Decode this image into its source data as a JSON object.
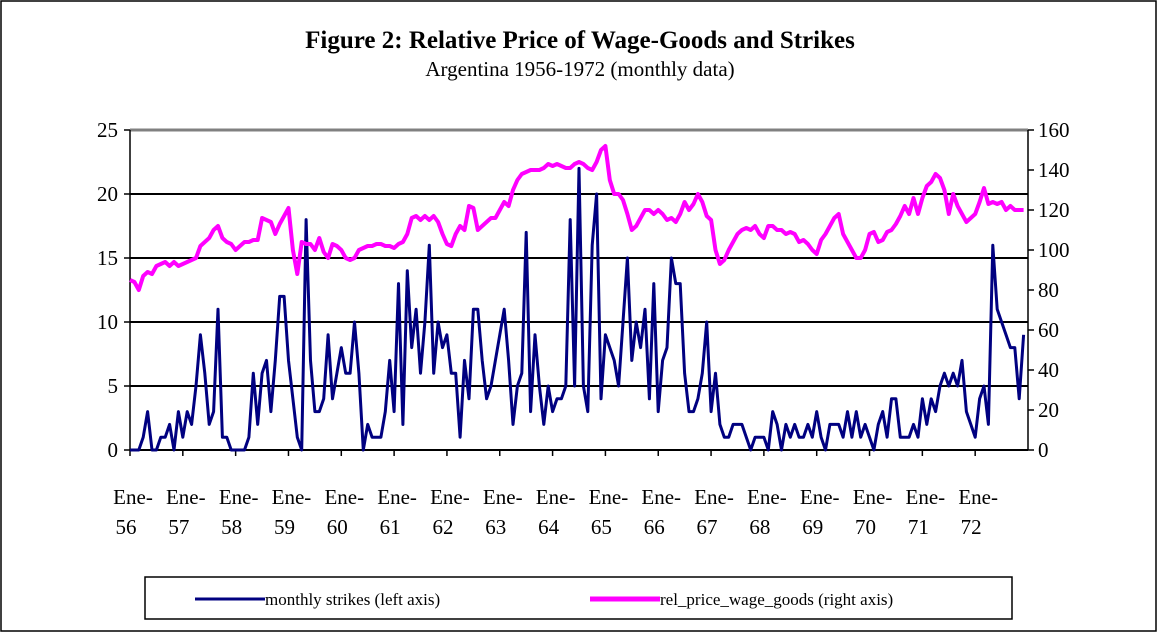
{
  "chart_data": {
    "type": "line",
    "title": "Figure 2: Relative Price of Wage-Goods and Strikes",
    "subtitle": "Argentina 1956-1972 (monthly data)",
    "categories": [
      "Ene-56",
      null,
      null,
      null,
      null,
      null,
      null,
      null,
      null,
      null,
      null,
      null,
      "Ene-57",
      null,
      null,
      null,
      null,
      null,
      null,
      null,
      null,
      null,
      null,
      null,
      "Ene-58",
      null,
      null,
      null,
      null,
      null,
      null,
      null,
      null,
      null,
      null,
      null,
      "Ene-59",
      null,
      null,
      null,
      null,
      null,
      null,
      null,
      null,
      null,
      null,
      null,
      "Ene-60",
      null,
      null,
      null,
      null,
      null,
      null,
      null,
      null,
      null,
      null,
      null,
      "Ene-61",
      null,
      null,
      null,
      null,
      null,
      null,
      null,
      null,
      null,
      null,
      null,
      "Ene-62",
      null,
      null,
      null,
      null,
      null,
      null,
      null,
      null,
      null,
      null,
      null,
      "Ene-63",
      null,
      null,
      null,
      null,
      null,
      null,
      null,
      null,
      null,
      null,
      null,
      "Ene-64",
      null,
      null,
      null,
      null,
      null,
      null,
      null,
      null,
      null,
      null,
      null,
      "Ene-65",
      null,
      null,
      null,
      null,
      null,
      null,
      null,
      null,
      null,
      null,
      null,
      "Ene-66",
      null,
      null,
      null,
      null,
      null,
      null,
      null,
      null,
      null,
      null,
      null,
      "Ene-67",
      null,
      null,
      null,
      null,
      null,
      null,
      null,
      null,
      null,
      null,
      null,
      "Ene-68",
      null,
      null,
      null,
      null,
      null,
      null,
      null,
      null,
      null,
      null,
      null,
      "Ene-69",
      null,
      null,
      null,
      null,
      null,
      null,
      null,
      null,
      null,
      null,
      null,
      "Ene-70",
      null,
      null,
      null,
      null,
      null,
      null,
      null,
      null,
      null,
      null,
      null,
      "Ene-71",
      null,
      null,
      null,
      null,
      null,
      null,
      null,
      null,
      null,
      null,
      null,
      "Ene-72",
      null,
      null,
      null,
      null,
      null,
      null,
      null,
      null,
      null,
      null,
      null
    ],
    "series": [
      {
        "name": "monthly strikes (left axis)",
        "color": "#000080",
        "values": [
          0,
          0,
          0,
          1,
          3,
          0,
          0,
          1,
          1,
          2,
          0,
          3,
          1,
          3,
          2,
          5,
          9,
          6,
          2,
          3,
          11,
          1,
          1,
          0,
          0,
          0,
          0,
          1,
          6,
          2,
          6,
          7,
          3,
          7,
          12,
          12,
          7,
          4,
          1,
          0,
          18,
          7,
          3,
          3,
          4,
          9,
          4,
          6,
          8,
          6,
          6,
          10,
          6,
          0,
          2,
          1,
          1,
          1,
          3,
          7,
          3,
          13,
          2,
          14,
          8,
          11,
          6,
          10,
          16,
          6,
          10,
          8,
          9,
          6,
          6,
          1,
          7,
          4,
          11,
          11,
          7,
          4,
          5,
          7,
          9,
          11,
          7,
          2,
          5,
          6,
          17,
          3,
          9,
          5,
          2,
          5,
          3,
          4,
          4,
          5,
          18,
          5,
          22,
          5,
          3,
          16,
          20,
          4,
          9,
          8,
          7,
          5,
          10,
          15,
          7,
          10,
          8,
          11,
          4,
          13,
          3,
          7,
          8,
          15,
          13,
          13,
          6,
          3,
          3,
          4,
          6,
          10,
          3,
          6,
          2,
          1,
          1,
          2,
          2,
          2,
          1,
          0,
          1,
          1,
          1,
          0,
          3,
          2,
          0,
          2,
          1,
          2,
          1,
          1,
          2,
          1,
          3,
          1,
          0,
          2,
          2,
          2,
          1,
          3,
          1,
          3,
          1,
          2,
          1,
          0,
          2,
          3,
          1,
          4,
          4,
          1,
          1,
          1,
          2,
          1,
          4,
          2,
          4,
          3,
          5,
          6,
          5,
          6,
          5,
          7,
          3,
          2,
          1,
          4,
          5,
          2,
          16,
          11,
          10,
          9,
          8,
          8,
          4,
          9
        ]
      },
      {
        "name": "rel_price_wage_goods (right axis)",
        "color": "#ff00ff",
        "axis": "y2",
        "values": [
          85,
          84,
          80,
          87,
          89,
          88,
          92,
          93,
          94,
          92,
          94,
          92,
          93,
          94,
          95,
          96,
          102,
          104,
          106,
          110,
          112,
          106,
          104,
          103,
          100,
          102,
          104,
          104,
          105,
          105,
          116,
          115,
          114,
          108,
          113,
          117,
          121,
          100,
          88,
          104,
          103,
          103,
          100,
          106,
          99,
          96,
          103,
          102,
          100,
          96,
          95,
          96,
          100,
          101,
          102,
          102,
          103,
          103,
          102,
          102,
          101,
          103,
          104,
          108,
          116,
          117,
          115,
          117,
          115,
          117,
          114,
          108,
          103,
          102,
          108,
          112,
          110,
          122,
          121,
          110,
          112,
          114,
          116,
          116,
          120,
          124,
          122,
          130,
          135,
          138,
          139,
          140,
          140,
          140,
          141,
          143,
          142,
          143,
          142,
          141,
          141,
          143,
          144,
          143,
          141,
          140,
          144,
          150,
          152,
          135,
          128,
          128,
          125,
          118,
          110,
          112,
          116,
          120,
          120,
          118,
          120,
          118,
          115,
          116,
          114,
          118,
          124,
          120,
          123,
          128,
          124,
          117,
          115,
          100,
          93,
          95,
          100,
          104,
          108,
          110,
          111,
          110,
          112,
          108,
          106,
          112,
          112,
          110,
          110,
          108,
          109,
          108,
          104,
          105,
          103,
          100,
          98,
          105,
          108,
          112,
          116,
          118,
          108,
          104,
          100,
          96,
          96,
          100,
          108,
          109,
          104,
          105,
          109,
          110,
          113,
          117,
          122,
          118,
          126,
          118,
          126,
          132,
          134,
          138,
          136,
          130,
          118,
          128,
          122,
          118,
          114,
          116,
          118,
          124,
          131,
          123,
          124,
          123,
          124,
          120,
          122,
          120,
          120,
          120
        ]
      }
    ],
    "ylim": [
      0,
      25
    ],
    "yticks": [
      0,
      5,
      10,
      15,
      20,
      25
    ],
    "y2lim": [
      0,
      160
    ],
    "y2ticks": [
      0,
      20,
      40,
      60,
      80,
      100,
      120,
      140,
      160
    ],
    "grid": true,
    "legend": "bottom"
  }
}
